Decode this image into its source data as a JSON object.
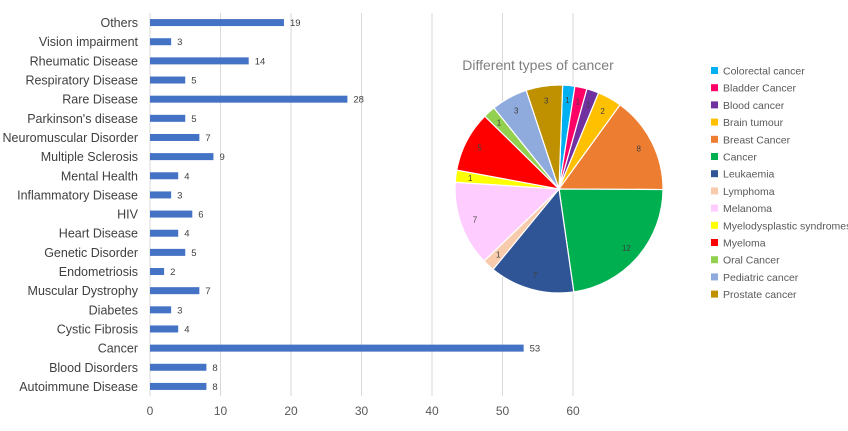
{
  "chart_data": [
    {
      "type": "bar",
      "orientation": "horizontal",
      "categories": [
        "Others",
        "Vision impairment",
        "Rheumatic Disease",
        "Respiratory Disease",
        "Rare Disease",
        "Parkinson's disease",
        "Neuromuscular Disorder",
        "Multiple Sclerosis",
        "Mental Health",
        "Inflammatory Disease",
        "HIV",
        "Heart Disease",
        "Genetic Disorder",
        "Endometriosis",
        "Muscular Dystrophy",
        "Diabetes",
        "Cystic Fibrosis",
        "Cancer",
        "Blood Disorders",
        "Autoimmune Disease"
      ],
      "values": [
        19,
        3,
        14,
        5,
        28,
        5,
        7,
        9,
        4,
        3,
        6,
        4,
        5,
        2,
        7,
        3,
        4,
        53,
        8,
        8
      ],
      "xlim": [
        0,
        60
      ],
      "xticks": [
        0,
        10,
        20,
        30,
        40,
        50,
        60
      ],
      "grid": true,
      "bar_color": "#4472c4"
    },
    {
      "type": "pie",
      "title": "Different types of cancer",
      "legend_position": "right",
      "slices": [
        {
          "label": "Colorectal cancer",
          "value": 1,
          "color": "#00b0f0"
        },
        {
          "label": "Bladder Cancer",
          "value": 1,
          "color": "#ff0066"
        },
        {
          "label": "Blood cancer",
          "value": 1,
          "color": "#7030a0"
        },
        {
          "label": "Brain tumour",
          "value": 2,
          "color": "#ffc000"
        },
        {
          "label": "Breast Cancer",
          "value": 8,
          "color": "#ed7d31"
        },
        {
          "label": "Cancer",
          "value": 12,
          "color": "#00b050"
        },
        {
          "label": "Leukaemia",
          "value": 7,
          "color": "#2f5597"
        },
        {
          "label": "Lymphoma",
          "value": 1,
          "color": "#f8cbad"
        },
        {
          "label": "Melanoma",
          "value": 7,
          "color": "#ffccff"
        },
        {
          "label": "Myelodysplastic syndromes",
          "value": 1,
          "color": "#ffff00"
        },
        {
          "label": "Myeloma",
          "value": 5,
          "color": "#ff0000"
        },
        {
          "label": "Oral Cancer",
          "value": 1,
          "color": "#92d050"
        },
        {
          "label": "Pediatric cancer",
          "value": 3,
          "color": "#8faadc"
        },
        {
          "label": "Prostate cancer",
          "value": 3,
          "color": "#bf9000"
        }
      ]
    }
  ]
}
